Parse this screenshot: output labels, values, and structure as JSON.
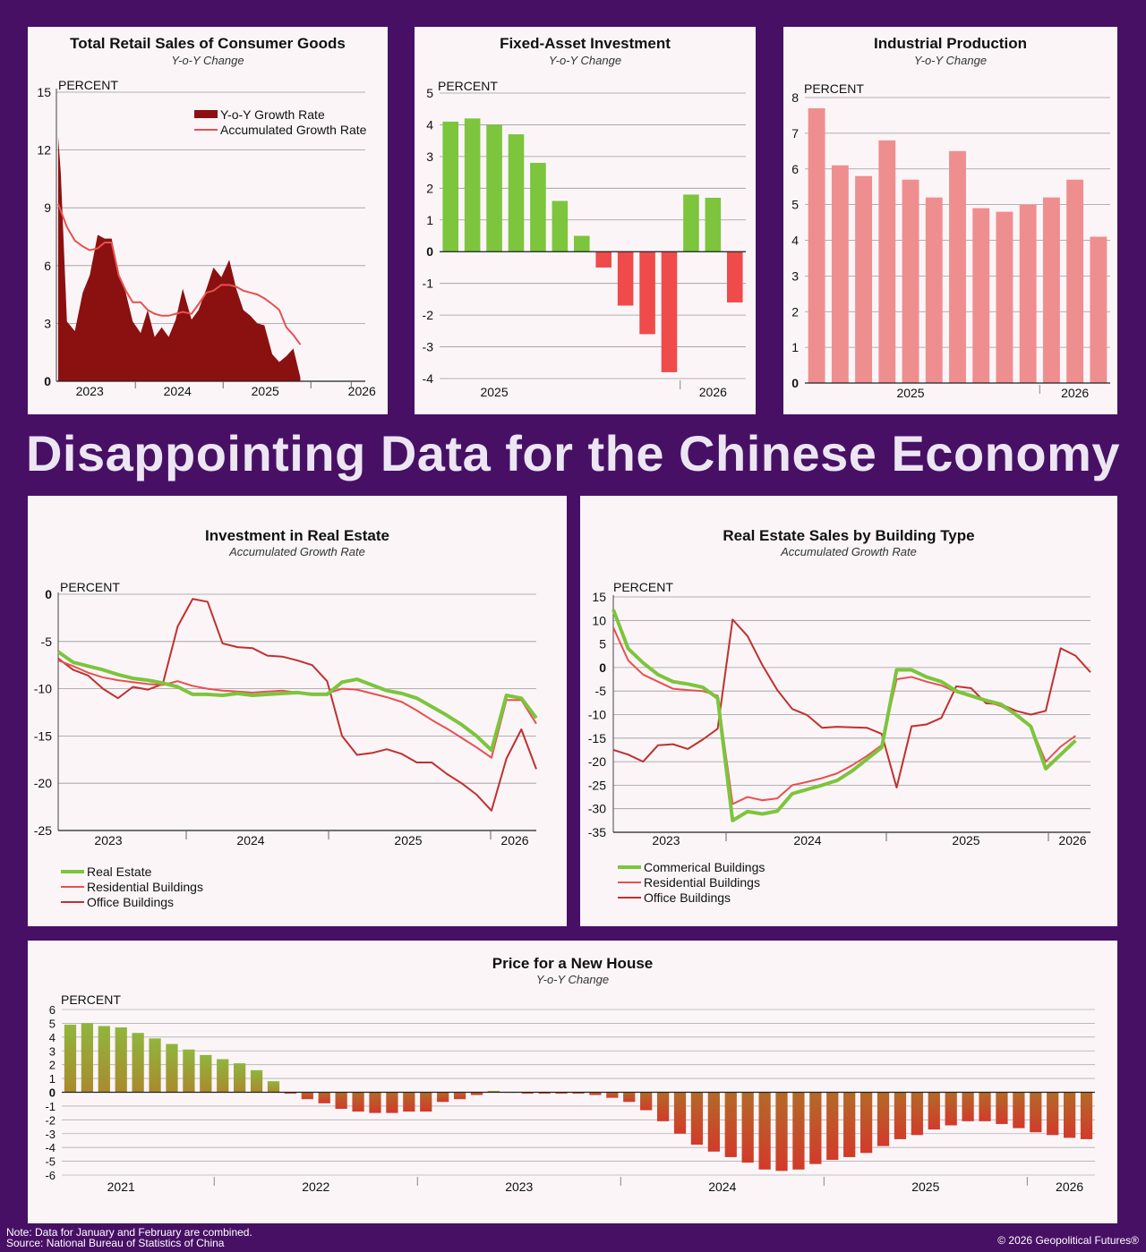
{
  "headline": "Disappointing Data for the Chinese Economy",
  "footer": {
    "note": "Note: Data for January and February are combined.",
    "source": "Source: National Bureau of Statistics of China",
    "copyright": "© 2026 Geopolitical Futures®"
  },
  "colors": {
    "background": "#471065",
    "dark_red": "#8b1010",
    "red": "#e8504f",
    "green": "#7cc53c",
    "pink": "#ef8e8f"
  },
  "chart_data": [
    {
      "id": "retail",
      "type": "area",
      "title": "Total Retail Sales of Consumer Goods",
      "subtitle": "Y-o-Y Change",
      "ylabel": "PERCENT",
      "ylim": [
        0,
        15
      ],
      "yticks": [
        0,
        3,
        6,
        9,
        12,
        15
      ],
      "xlim": [
        2022.6,
        2026.12
      ],
      "year_ticks": [
        {
          "label": "2023",
          "x": 2023
        },
        {
          "label": "2024",
          "x": 2024
        },
        {
          "label": "2025",
          "x": 2025
        },
        {
          "label": "2026",
          "x": 2026
        }
      ],
      "legend_position": "top-right",
      "series": [
        {
          "name": "Y-o-Y Growth Rate",
          "style": "area",
          "color": "#8b1010",
          "x": [
            2022.62,
            2022.65,
            2022.72,
            2022.81,
            2022.9,
            2022.98,
            2023.07,
            2023.15,
            2023.23,
            2023.31,
            2023.39,
            2023.47,
            2023.56,
            2023.64,
            2023.72,
            2023.8,
            2023.88,
            2023.96,
            2024.04,
            2024.14,
            2024.22,
            2024.31,
            2024.39,
            2024.48,
            2024.57,
            2024.65,
            2024.73,
            2024.81,
            2024.89,
            2024.97,
            2025.06,
            2025.14,
            2025.22,
            2025.3,
            2025.38,
            2025.47,
            2025.55,
            2025.64,
            2025.72,
            2025.8,
            2025.88,
            2025.97,
            2026.06
          ],
          "y": [
            12.7,
            10.8,
            3.1,
            2.6,
            4.6,
            5.5,
            7.6,
            7.4,
            7.4,
            5.5,
            4.6,
            3.1,
            2.5,
            3.7,
            2.3,
            2.8,
            2.3,
            3.2,
            4.8,
            3.2,
            3.7,
            4.8,
            5.9,
            5.4,
            6.3,
            4.8,
            3.7,
            3.4,
            3.0,
            2.9,
            1.4,
            1.0,
            1.3,
            1.7,
            0.2,
            null,
            null,
            null,
            null,
            null,
            null,
            null,
            null
          ]
        },
        {
          "name": "Accumulated Growth Rate",
          "style": "line",
          "color": "#e8504f",
          "x": [
            2022.62,
            2022.72,
            2022.81,
            2022.9,
            2022.98,
            2023.07,
            2023.15,
            2023.23,
            2023.31,
            2023.39,
            2023.47,
            2023.56,
            2023.64,
            2023.72,
            2023.8,
            2023.88,
            2023.96,
            2024.04,
            2024.14,
            2024.22,
            2024.31,
            2024.39,
            2024.48,
            2024.57,
            2024.65,
            2024.73,
            2024.81,
            2024.89,
            2024.97,
            2025.06,
            2025.14,
            2025.22,
            2025.3,
            2025.38,
            2025.47,
            2025.55,
            2025.64,
            2025.72,
            2025.8,
            2025.88,
            2025.97,
            2026.06,
            2026.12
          ],
          "y": [
            9.2,
            8.0,
            7.3,
            7.0,
            6.8,
            6.9,
            7.2,
            7.2,
            5.5,
            4.7,
            4.1,
            4.1,
            3.7,
            3.5,
            3.4,
            3.4,
            3.5,
            3.6,
            3.5,
            4.0,
            4.6,
            4.7,
            5.0,
            5.0,
            4.9,
            4.7,
            4.6,
            4.5,
            4.3,
            4.0,
            3.7,
            2.8,
            2.4,
            1.9,
            null,
            null,
            null,
            null,
            null,
            null,
            null,
            null,
            null
          ]
        }
      ]
    },
    {
      "id": "fai",
      "type": "bar",
      "title": "Fixed-Asset Investment",
      "subtitle": "Y-o-Y Change",
      "ylabel": "PERCENT",
      "ylim": [
        -4,
        5
      ],
      "yticks": [
        -4,
        -3,
        -2,
        -1,
        0,
        1,
        2,
        3,
        4,
        5
      ],
      "year_labels": [
        {
          "label": "2025",
          "center": 2.5
        },
        {
          "label": "2026",
          "center": 12.5
        }
      ],
      "year_dividers": [
        11
      ],
      "values": [
        4.1,
        4.2,
        4.0,
        3.7,
        2.8,
        1.6,
        0.5,
        -0.5,
        -1.7,
        -2.6,
        -3.8,
        1.8,
        1.7,
        -1.6
      ],
      "color_positive": "#7cc53c",
      "color_negative": "#ef4b4b"
    },
    {
      "id": "ip",
      "type": "bar",
      "title": "Industrial Production",
      "subtitle": "Y-o-Y Change",
      "ylabel": "PERCENT",
      "ylim": [
        0,
        8
      ],
      "yticks": [
        0,
        1,
        2,
        3,
        4,
        5,
        6,
        7,
        8
      ],
      "year_labels": [
        {
          "label": "2025",
          "center": 4.5
        },
        {
          "label": "2026",
          "center": 11.5
        }
      ],
      "year_dividers": [
        10
      ],
      "values": [
        7.7,
        6.1,
        5.8,
        6.8,
        5.7,
        5.2,
        6.5,
        4.9,
        4.8,
        5.0,
        5.2,
        5.7,
        4.1
      ],
      "color": "#ef8e8f"
    },
    {
      "id": "rei",
      "type": "line",
      "title": "Investment in Real Estate",
      "subtitle": "Accumulated Growth Rate",
      "ylabel": "PERCENT",
      "ylim": [
        -25,
        0
      ],
      "yticks": [
        -25,
        -20,
        -15,
        -10,
        -5,
        0
      ],
      "xlim": [
        2022.6,
        2026.12
      ],
      "year_ticks": [
        {
          "label": "2023",
          "x": 2023
        },
        {
          "label": "2024",
          "x": 2024
        },
        {
          "label": "2025",
          "x": 2025
        },
        {
          "label": "2026",
          "x": 2026
        }
      ],
      "legend_position": "bottom-left",
      "series": [
        {
          "name": "Real Estate",
          "color": "#7cc53c",
          "width": 4,
          "x": [
            2022.6,
            2022.7,
            2022.8,
            2022.9,
            2023.0,
            2023.1,
            2023.2,
            2023.3,
            2023.4,
            2023.5,
            2023.6,
            2023.7,
            2023.8,
            2023.9,
            2024.0,
            2024.1,
            2024.2,
            2024.3,
            2024.4,
            2024.5,
            2024.6,
            2024.7,
            2024.8,
            2024.9,
            2025.0,
            2025.1,
            2025.2,
            2025.3,
            2025.4,
            2025.5,
            2025.6,
            2025.7,
            2025.8,
            2025.9,
            2026.0,
            2026.1
          ],
          "y": [
            -6.1,
            -7.2,
            -7.6,
            -8.0,
            -8.5,
            -8.9,
            -9.1,
            -9.4,
            -9.8,
            -10.6,
            -10.6,
            -10.7,
            -10.5,
            -10.7,
            -10.6,
            -10.5,
            -10.4,
            -10.6,
            -10.6,
            -9.3,
            -9.0,
            -9.6,
            -10.2,
            -10.5,
            -11.0,
            -11.9,
            -12.8,
            -13.8,
            -15.0,
            -16.5,
            -10.7,
            -11.0,
            -13.1,
            null,
            null,
            null
          ],
          "_note": "points mapped in script"
        },
        {
          "name": "Residential Buildings",
          "color": "#e8504f",
          "width": 2,
          "y": [
            -7.0,
            -7.6,
            -8.3,
            -8.8,
            -9.1,
            -9.3,
            -9.5,
            -9.6,
            -9.2,
            -9.7,
            -10.0,
            -10.2,
            -10.3,
            -10.4,
            -10.3,
            -10.2,
            -10.4,
            -10.5,
            -10.5,
            -10.0,
            -10.1,
            -10.5,
            -10.9,
            -11.4,
            -12.3,
            -13.3,
            -14.2,
            -15.2,
            -16.2,
            -17.3,
            -11.2,
            -11.2,
            -13.7,
            null,
            null,
            null
          ]
        },
        {
          "name": "Office Buildings",
          "color": "#c0302f",
          "width": 2,
          "y": [
            -6.8,
            -8.0,
            -8.6,
            -10.0,
            -11.0,
            -9.8,
            -10.1,
            -9.5,
            -3.4,
            -0.5,
            -0.8,
            -5.2,
            -5.6,
            -5.7,
            -6.5,
            -6.6,
            -7.0,
            -7.5,
            -9.2,
            -15.0,
            -17.0,
            -16.8,
            -16.4,
            -16.9,
            -17.8,
            -17.8,
            -19.0,
            -20.0,
            -21.2,
            -22.9,
            -17.4,
            -14.3,
            -18.5,
            null,
            null,
            null
          ]
        }
      ]
    },
    {
      "id": "res",
      "type": "line",
      "title": "Real Estate Sales by Building Type",
      "subtitle": "Accumulated Growth Rate",
      "ylabel": "PERCENT",
      "ylim": [
        -35,
        15
      ],
      "yticks": [
        -35,
        -30,
        -25,
        -20,
        -15,
        -10,
        -5,
        0,
        5,
        10,
        15
      ],
      "year_ticks": [
        {
          "label": "2023",
          "x": 2023
        },
        {
          "label": "2024",
          "x": 2024
        },
        {
          "label": "2025",
          "x": 2025
        },
        {
          "label": "2026",
          "x": 2026
        }
      ],
      "legend_position": "bottom-left",
      "series": [
        {
          "name": "Commerical Buildings",
          "color": "#7cc53c",
          "width": 4,
          "y": [
            12.3,
            4.0,
            1.0,
            -1.5,
            -3.0,
            -3.5,
            -4.2,
            -6.5,
            -32.5,
            -30.6,
            -31.1,
            -30.5,
            -26.8,
            -25.9,
            -25.0,
            -24.0,
            -22.0,
            -19.5,
            -17.0,
            -0.5,
            -0.5,
            -2.0,
            -3.0,
            -5.0,
            -6.0,
            -7.0,
            -7.8,
            -10.0,
            -12.5,
            -21.5,
            -18.5,
            -15.5
          ]
        },
        {
          "name": "Residential Buildings",
          "color": "#e8504f",
          "width": 2,
          "y": [
            8.5,
            1.5,
            -1.5,
            -3.0,
            -4.5,
            -4.8,
            -5.0,
            -6.0,
            -29.0,
            -27.5,
            -28.2,
            -27.8,
            -25.0,
            -24.3,
            -23.5,
            -22.5,
            -20.8,
            -18.8,
            -16.5,
            -2.5,
            -2.0,
            -3.0,
            -3.8,
            -5.2,
            -6.2,
            -7.2,
            -8.2,
            -10.0,
            -12.5,
            -20.0,
            -16.8,
            -14.5
          ]
        },
        {
          "name": "Office Buildings",
          "color": "#c0302f",
          "width": 2,
          "y": [
            -17.5,
            -18.5,
            -20.0,
            -16.5,
            -16.3,
            -17.3,
            -15.3,
            -13.0,
            10.2,
            6.7,
            0.5,
            -4.8,
            -8.8,
            -10.1,
            -12.8,
            -12.6,
            -12.7,
            -12.8,
            -14.1,
            -25.5,
            -12.5,
            -12.1,
            -10.7,
            -4.0,
            -4.4,
            -7.6,
            -7.8,
            -9.2,
            -10.0,
            -9.2,
            4.1,
            2.5,
            -1.0
          ]
        }
      ]
    },
    {
      "id": "house",
      "type": "bar",
      "title": "Price for a New House",
      "subtitle": "Y-o-Y Change",
      "ylabel": "PERCENT",
      "ylim": [
        -6,
        6
      ],
      "yticks": [
        -6,
        -5,
        -4,
        -3,
        -2,
        -1,
        0,
        1,
        2,
        3,
        4,
        5,
        6
      ],
      "year_labels": [
        {
          "label": "2021",
          "center": 3.5
        },
        {
          "label": "2022",
          "center": 15.0
        },
        {
          "label": "2023",
          "center": 27.0
        },
        {
          "label": "2024",
          "center": 39.0
        },
        {
          "label": "2025",
          "center": 51.0
        },
        {
          "label": "2026",
          "center": 59.5
        }
      ],
      "year_dividers": [
        9,
        21,
        33,
        45,
        57
      ],
      "values": [
        4.9,
        5.0,
        4.8,
        4.7,
        4.3,
        3.9,
        3.5,
        3.1,
        2.7,
        2.4,
        2.1,
        1.6,
        0.8,
        -0.1,
        -0.5,
        -0.8,
        -1.2,
        -1.4,
        -1.5,
        -1.5,
        -1.4,
        -1.4,
        -0.7,
        -0.5,
        -0.2,
        0.1,
        0.0,
        -0.1,
        -0.1,
        -0.1,
        -0.1,
        -0.2,
        -0.4,
        -0.7,
        -1.3,
        -2.1,
        -3.0,
        -3.8,
        -4.3,
        -4.7,
        -5.1,
        -5.6,
        -5.7,
        -5.6,
        -5.2,
        -4.9,
        -4.7,
        -4.4,
        -3.9,
        -3.4,
        -3.1,
        -2.7,
        -2.4,
        -2.1,
        -2.1,
        -2.3,
        -2.6,
        -2.9,
        -3.1,
        -3.3,
        -3.4
      ]
    }
  ]
}
